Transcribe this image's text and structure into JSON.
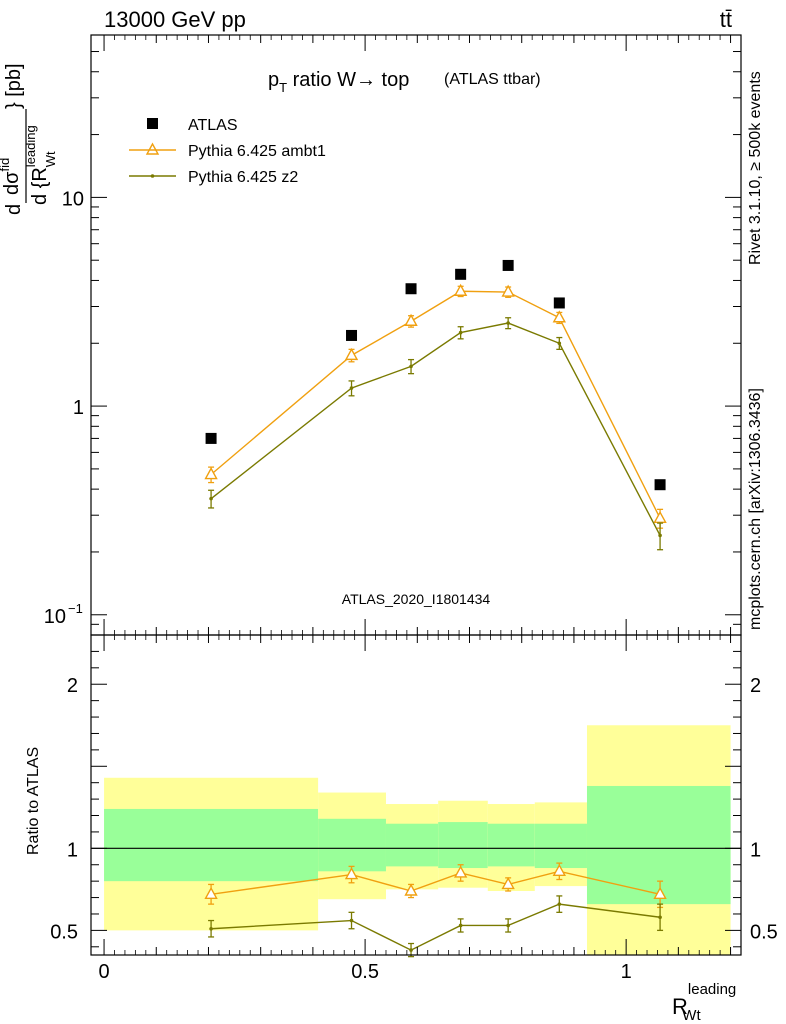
{
  "header": {
    "left": "13000 GeV pp",
    "right": "tt̄"
  },
  "side_labels": {
    "rivet": "Rivet 3.1.10, ≥ 500k events",
    "mcplots": "mcplots.cern.ch [arXiv:1306.3436]"
  },
  "colors": {
    "atlas": "#000000",
    "ambt1": "#f0a010",
    "z2": "#7a7a00",
    "band_outer": "#ffff99",
    "band_inner": "#99ff99",
    "watermark": "#999999"
  },
  "chart_data": [
    {
      "type": "line",
      "title_main": "p",
      "title_sub": "T",
      "title_rest": " ratio W→ top",
      "title_paren": "(ATLAS ttbar)",
      "watermark": "ATLAS_2020_I1801434",
      "ylabel": "d σ / d {R_Wt^leading} [pb]",
      "ylabel_parts": {
        "d1": "d",
        "num": "dσ",
        "numsup": "fid",
        "den": "d {R",
        "densup": "leading",
        "densub": "Wt",
        "tail": "} [pb]"
      },
      "yscale": "log",
      "ylim": [
        0.08,
        60
      ],
      "xlim": [
        -0.025,
        1.22
      ],
      "yticks": [
        {
          "value": 0.1,
          "label": "10",
          "exp": "−1"
        },
        {
          "value": 1,
          "label": "1",
          "exp": ""
        },
        {
          "value": 10,
          "label": "10",
          "exp": ""
        }
      ],
      "legend": [
        {
          "key": "atlas",
          "label": "ATLAS"
        },
        {
          "key": "ambt1",
          "label": "Pythia 6.425 ambt1"
        },
        {
          "key": "z2",
          "label": "Pythia 6.425 z2"
        }
      ],
      "legend_position": "top-left",
      "x": [
        0.205,
        0.474,
        0.588,
        0.683,
        0.774,
        0.872,
        1.065
      ],
      "series": [
        {
          "name": "ATLAS",
          "key": "atlas",
          "marker": "square",
          "values": [
            0.7,
            2.18,
            3.65,
            4.28,
            4.72,
            3.12,
            0.42
          ]
        },
        {
          "name": "Pythia 6.425 ambt1",
          "key": "ambt1",
          "marker": "triangle",
          "values": [
            0.47,
            1.75,
            2.55,
            3.55,
            3.52,
            2.65,
            0.29
          ],
          "err": [
            0.04,
            0.12,
            0.16,
            0.2,
            0.2,
            0.16,
            0.03
          ]
        },
        {
          "name": "Pythia 6.425 z2",
          "key": "z2",
          "marker": "dot",
          "values": [
            0.36,
            1.22,
            1.55,
            2.25,
            2.5,
            2.0,
            0.24
          ],
          "err": [
            0.035,
            0.1,
            0.12,
            0.15,
            0.15,
            0.13,
            0.035
          ]
        }
      ]
    },
    {
      "type": "line",
      "ylabel": "Ratio to ATLAS",
      "xlabel_main": "R",
      "xlabel_sup": "leading",
      "xlabel_sub": "Wt",
      "ylim": [
        0.35,
        2.3
      ],
      "xlim": [
        -0.025,
        1.22
      ],
      "yticks": [
        {
          "value": 0.5,
          "label": "0.5"
        },
        {
          "value": 1,
          "label": "1"
        },
        {
          "value": 2,
          "label": "2"
        }
      ],
      "xticks": [
        {
          "value": 0,
          "label": "0"
        },
        {
          "value": 0.5,
          "label": "0.5"
        },
        {
          "value": 1,
          "label": "1"
        }
      ],
      "bands": [
        {
          "x0": 0.0,
          "x1": 0.41,
          "outer": [
            0.5,
            1.43
          ],
          "inner": [
            0.8,
            1.24
          ]
        },
        {
          "x0": 0.41,
          "x1": 0.54,
          "outer": [
            0.69,
            1.34
          ],
          "inner": [
            0.86,
            1.18
          ]
        },
        {
          "x0": 0.54,
          "x1": 0.64,
          "outer": [
            0.75,
            1.27
          ],
          "inner": [
            0.89,
            1.15
          ]
        },
        {
          "x0": 0.64,
          "x1": 0.735,
          "outer": [
            0.76,
            1.29
          ],
          "inner": [
            0.88,
            1.16
          ]
        },
        {
          "x0": 0.735,
          "x1": 0.825,
          "outer": [
            0.74,
            1.27
          ],
          "inner": [
            0.89,
            1.15
          ]
        },
        {
          "x0": 0.825,
          "x1": 0.925,
          "outer": [
            0.77,
            1.28
          ],
          "inner": [
            0.88,
            1.15
          ]
        },
        {
          "x0": 0.925,
          "x1": 1.2,
          "outer": [
            0.34,
            1.75
          ],
          "inner": [
            0.66,
            1.38
          ]
        }
      ],
      "series": [
        {
          "name": "Pythia 6.425 ambt1",
          "key": "ambt1",
          "marker": "triangle",
          "values": [
            0.72,
            0.84,
            0.74,
            0.85,
            0.78,
            0.86,
            0.72
          ],
          "err": [
            0.06,
            0.05,
            0.04,
            0.05,
            0.04,
            0.05,
            0.08
          ]
        },
        {
          "name": "Pythia 6.425 z2",
          "key": "z2",
          "marker": "dot",
          "values": [
            0.51,
            0.56,
            0.38,
            0.53,
            0.53,
            0.66,
            0.58
          ],
          "err": [
            0.05,
            0.05,
            0.04,
            0.04,
            0.04,
            0.05,
            0.08
          ]
        }
      ]
    }
  ]
}
